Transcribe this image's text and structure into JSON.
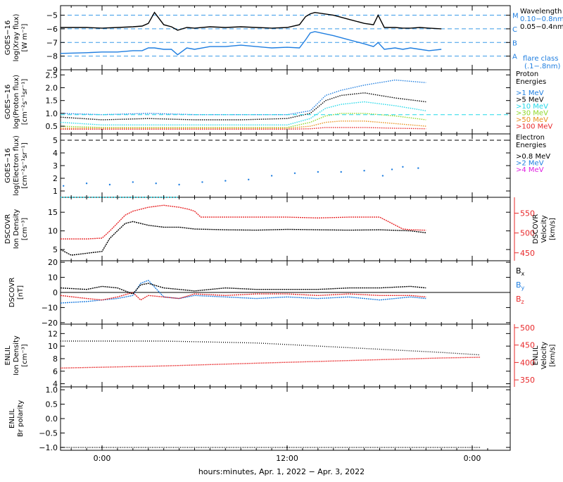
{
  "xlabel": "hours:minutes, Apr.  1, 2022 − Apr.  3, 2022",
  "x_ticks": [
    {
      "label": "0:00",
      "hour": 0
    },
    {
      "label": "12:00",
      "hour": 12
    },
    {
      "label": "0:00",
      "hour": 24
    }
  ],
  "colors": {
    "black": "#000000",
    "blue": "#1f7ee0",
    "cyan": "#22d8e8",
    "green": "#8fd82a",
    "orange": "#e8901c",
    "red": "#e8282a",
    "magenta": "#e020e0",
    "blue_dash": "#3a9ae8"
  },
  "panels": [
    {
      "id": "xray",
      "ylabel": [
        "GOES−16",
        "log(Xray flux)",
        "[W m⁻²]"
      ],
      "y_ticks": [
        "−5",
        "−6",
        "−7",
        "−8",
        "−9"
      ],
      "flare_class_labels": [
        "M",
        "C",
        "B",
        "A"
      ],
      "legend": [
        "Wavelength",
        "0.10−0.8nm",
        "0.05−0.4nm",
        "flare class",
        "(.1−.8nm)"
      ]
    },
    {
      "id": "proton",
      "ylabel": [
        "GOES−16",
        "log(Proton flux)",
        "[cm⁻²s⁻¹sr⁻¹]"
      ],
      "y_ticks": [
        "2.5",
        "2.0",
        "1.5",
        "1.0",
        "0.5"
      ],
      "legend": [
        "Proton",
        "Energies",
        ">1 MeV",
        ">5 MeV",
        ">10 MeV",
        ">30 MeV",
        ">50 MeV",
        ">100 MeV"
      ]
    },
    {
      "id": "electron",
      "ylabel": [
        "GOES−16",
        "log(Electron flux)",
        "[cm⁻²s⁻¹sr⁻¹]"
      ],
      "y_ticks": [
        "5",
        "4",
        "3",
        "2",
        "1"
      ],
      "legend": [
        "Electron",
        "Energies",
        ">0.8 MeV",
        ">2 MeV",
        ">4 MeV"
      ]
    },
    {
      "id": "dscovr_density",
      "ylabel": [
        "DSCOVR",
        "Ion Density",
        "[cm⁻³]"
      ],
      "y_ticks": [
        "15",
        "10",
        "5"
      ],
      "right_ylabel": [
        "DSCOVR",
        "Velocity",
        "[km/s]"
      ],
      "right_ticks": [
        "550",
        "500",
        "450"
      ]
    },
    {
      "id": "dscovr_mag",
      "ylabel": [
        "DSCOVR",
        "[nT]"
      ],
      "y_ticks": [
        "20",
        "10",
        "0",
        "−10",
        "−20"
      ],
      "legend": [
        "Bx",
        "By",
        "Bz"
      ]
    },
    {
      "id": "enlil_density",
      "ylabel": [
        "ENLIL",
        "Ion Density",
        "[cm⁻³]"
      ],
      "y_ticks": [
        "12",
        "10",
        "8",
        "6",
        "4"
      ],
      "right_ylabel": [
        "ENLIL",
        "Velocity",
        "[km/s]"
      ],
      "right_ticks": [
        "500",
        "450",
        "400",
        "350"
      ]
    },
    {
      "id": "enlil_polarity",
      "ylabel": [
        "ENLIL",
        "Br polarity"
      ],
      "y_ticks": [
        "1.0",
        "0.5",
        "0.0",
        "−0.5",
        "−1.0"
      ]
    }
  ],
  "chart_data": [
    {
      "type": "line",
      "panel": "xray",
      "ylim": [
        -9,
        -4.3
      ],
      "flare_levels": [
        -5,
        -6,
        -7,
        -8
      ],
      "series": [
        {
          "name": "0.10−0.8nm",
          "x": [
            -3,
            -1,
            0,
            1,
            2,
            2.6,
            3,
            3.4,
            4,
            4.5,
            4.9,
            5.5,
            6,
            7,
            8,
            9,
            10,
            11,
            12,
            12.8,
            13.2,
            13.5,
            13.8,
            15,
            16,
            17,
            17.6,
            17.9,
            18.3,
            19,
            19.5,
            20,
            20.6,
            21.2,
            22
          ],
          "y": [
            -7.8,
            -7.75,
            -7.7,
            -7.7,
            -7.6,
            -7.6,
            -7.4,
            -7.4,
            -7.5,
            -7.5,
            -7.9,
            -7.4,
            -7.5,
            -7.3,
            -7.3,
            -7.2,
            -7.3,
            -7.4,
            -7.35,
            -7.4,
            -6.8,
            -6.3,
            -6.2,
            -6.5,
            -6.8,
            -7.1,
            -7.3,
            -7.0,
            -7.5,
            -7.4,
            -7.5,
            -7.4,
            -7.5,
            -7.6,
            -7.5
          ]
        },
        {
          "name": "0.05−0.4nm",
          "x": [
            -3,
            -1,
            0,
            1,
            2,
            2.6,
            3,
            3.4,
            4,
            4.5,
            4.9,
            5.5,
            6,
            7,
            8,
            9,
            10,
            11,
            12,
            12.8,
            13.2,
            13.5,
            13.8,
            15,
            16,
            17,
            17.6,
            17.9,
            18.3,
            19,
            19.5,
            20,
            20.6,
            21.2,
            22
          ],
          "y": [
            -5.9,
            -5.9,
            -5.95,
            -5.9,
            -5.85,
            -5.8,
            -5.6,
            -4.8,
            -5.7,
            -5.85,
            -6.1,
            -5.9,
            -5.95,
            -5.85,
            -5.9,
            -5.85,
            -5.9,
            -5.95,
            -5.9,
            -5.7,
            -5.1,
            -4.9,
            -4.8,
            -5.0,
            -5.3,
            -5.6,
            -5.7,
            -5.0,
            -5.9,
            -5.9,
            -5.95,
            -5.95,
            -5.9,
            -5.95,
            -6.0
          ]
        }
      ]
    },
    {
      "type": "line",
      "panel": "proton",
      "ylim": [
        0.2,
        2.7
      ],
      "threshold": 0.95,
      "series": [
        {
          "name": ">1 MeV",
          "x": [
            -3,
            0,
            3,
            6,
            9,
            12,
            13.5,
            14.5,
            15.5,
            17,
            19,
            21
          ],
          "y": [
            1.0,
            0.95,
            1.0,
            0.95,
            0.95,
            0.95,
            1.1,
            1.7,
            1.9,
            2.1,
            2.3,
            2.2
          ]
        },
        {
          "name": ">5 MeV",
          "x": [
            -3,
            0,
            3,
            6,
            9,
            12,
            13.5,
            14.5,
            15.5,
            17,
            19,
            21
          ],
          "y": [
            0.85,
            0.75,
            0.8,
            0.75,
            0.75,
            0.8,
            1.0,
            1.5,
            1.7,
            1.8,
            1.6,
            1.45
          ]
        },
        {
          "name": ">10 MeV",
          "x": [
            -3,
            0,
            3,
            6,
            9,
            12,
            13.5,
            14.5,
            15.5,
            17,
            19,
            21
          ],
          "y": [
            0.65,
            0.55,
            0.55,
            0.55,
            0.55,
            0.55,
            0.8,
            1.2,
            1.35,
            1.45,
            1.3,
            1.1
          ]
        },
        {
          "name": ">30 MeV",
          "x": [
            -3,
            0,
            3,
            6,
            9,
            12,
            13.5,
            14.5,
            15.5,
            17,
            19,
            21
          ],
          "y": [
            0.5,
            0.45,
            0.45,
            0.45,
            0.45,
            0.45,
            0.65,
            0.9,
            1.0,
            1.0,
            0.9,
            0.75
          ]
        },
        {
          "name": ">50 MeV",
          "x": [
            -3,
            0,
            3,
            6,
            9,
            12,
            13.5,
            14.5,
            15.5,
            17,
            19,
            21
          ],
          "y": [
            0.42,
            0.42,
            0.42,
            0.42,
            0.42,
            0.42,
            0.5,
            0.65,
            0.7,
            0.7,
            0.6,
            0.5
          ]
        },
        {
          "name": ">100 MeV",
          "x": [
            -3,
            0,
            3,
            6,
            9,
            12,
            13.5,
            14.5,
            15.5,
            17,
            19,
            21
          ],
          "y": [
            0.38,
            0.38,
            0.38,
            0.38,
            0.38,
            0.38,
            0.4,
            0.45,
            0.45,
            0.45,
            0.42,
            0.4
          ]
        }
      ]
    },
    {
      "type": "scatter",
      "panel": "electron",
      "ylim": [
        0.5,
        5.5
      ],
      "threshold": 5,
      "series": [
        {
          "name": ">2 MeV",
          "x": [
            -2.5,
            -1,
            0.5,
            2,
            3.5,
            5,
            6.5,
            8,
            9.5,
            11,
            12.5,
            14,
            15.5,
            17,
            18.2,
            18.8,
            19.5,
            20.5
          ],
          "y": [
            1.4,
            1.6,
            1.5,
            1.7,
            1.6,
            1.5,
            1.7,
            1.8,
            1.9,
            2.2,
            2.4,
            2.5,
            2.5,
            2.6,
            2.2,
            2.7,
            2.9,
            2.8
          ]
        },
        {
          "name": ">0.8 MeV",
          "x": [
            -3,
            5
          ],
          "y": [
            0.5,
            0.5
          ]
        }
      ]
    },
    {
      "type": "line",
      "panel": "dscovr_density",
      "ylim": [
        2,
        19
      ],
      "right_ylim": [
        430,
        590
      ],
      "series": [
        {
          "name": "Density",
          "x": [
            -3,
            -2,
            -1,
            0,
            0.5,
            1,
            1.5,
            2,
            3,
            4,
            5,
            6,
            8,
            10,
            12,
            14,
            16,
            18,
            20,
            21
          ],
          "y": [
            5,
            3.5,
            4,
            4.5,
            8,
            10,
            12,
            12.5,
            11.5,
            11,
            11,
            10.5,
            10.3,
            10.2,
            10.4,
            10.3,
            10.2,
            10.3,
            10,
            9.5
          ]
        },
        {
          "name": "Velocity",
          "x": [
            -3,
            -1,
            0,
            0.5,
            1,
            1.5,
            2,
            3,
            4,
            5,
            5.6,
            6,
            6.4,
            8,
            10,
            12,
            14,
            16,
            18,
            19.5,
            20,
            21
          ],
          "y": [
            485,
            485,
            487,
            505,
            525,
            545,
            555,
            565,
            570,
            565,
            560,
            555,
            540,
            540,
            540,
            540,
            538,
            540,
            540,
            510,
            508,
            507
          ]
        }
      ]
    },
    {
      "type": "line",
      "panel": "dscovr_mag",
      "ylim": [
        -21,
        21
      ],
      "series": [
        {
          "name": "Bx",
          "x": [
            -3,
            -1,
            0,
            1,
            2,
            2.5,
            3,
            4,
            5,
            6,
            8,
            10,
            12,
            14,
            16,
            18,
            20,
            21
          ],
          "y": [
            3,
            2,
            4,
            3,
            -1,
            5,
            6,
            3,
            2,
            1,
            3,
            2,
            2,
            2,
            3,
            3,
            4,
            3
          ]
        },
        {
          "name": "By",
          "x": [
            -3,
            -1,
            0,
            1,
            2,
            2.5,
            3,
            4,
            5,
            6,
            8,
            10,
            12,
            14,
            16,
            18,
            20,
            21
          ],
          "y": [
            -7,
            -6,
            -5,
            -4,
            -2,
            6,
            8,
            -3,
            -4,
            -2,
            -3,
            -4,
            -3,
            -4,
            -3,
            -5,
            -3,
            -4
          ]
        },
        {
          "name": "Bz",
          "x": [
            -3,
            -1,
            0,
            1,
            2,
            2.5,
            3,
            4,
            5,
            6,
            8,
            10,
            12,
            14,
            16,
            18,
            20,
            21
          ],
          "y": [
            -2,
            -4,
            -5,
            -3,
            0,
            -5,
            -2,
            -3,
            -4,
            -1,
            -2,
            -1,
            -1,
            -2,
            -1,
            -2,
            -2,
            -3
          ]
        }
      ]
    },
    {
      "type": "line",
      "panel": "enlil_density",
      "ylim": [
        3.5,
        13.5
      ],
      "right_ylim": [
        330,
        510
      ],
      "series": [
        {
          "name": "Density",
          "x": [
            -3,
            4,
            10,
            14,
            18,
            22,
            24.5
          ],
          "y": [
            10.8,
            10.8,
            10.5,
            10.0,
            9.5,
            9.0,
            8.6
          ]
        },
        {
          "name": "Velocity",
          "x": [
            -3,
            4,
            10,
            14,
            18,
            22,
            24.5
          ],
          "y": [
            384,
            390,
            398,
            403,
            408,
            413,
            415
          ]
        }
      ]
    },
    {
      "type": "line",
      "panel": "enlil_polarity",
      "ylim": [
        -1.1,
        1.1
      ],
      "series": [
        {
          "name": "Br polarity",
          "x": [
            -3,
            24.5
          ],
          "y": [
            -1,
            -1
          ]
        }
      ]
    }
  ]
}
